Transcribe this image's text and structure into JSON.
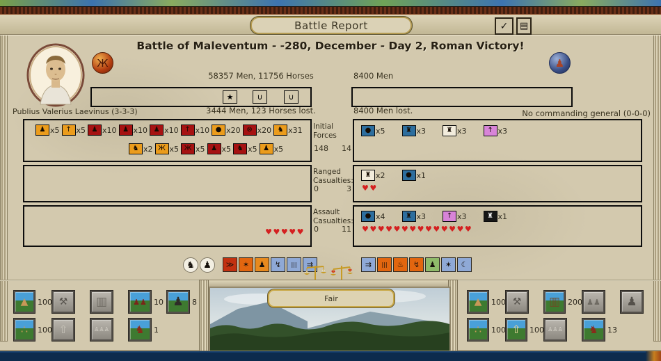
{
  "window": {
    "title": "Battle Report",
    "confirm_icon": "✓",
    "log_icon": "▤"
  },
  "header": {
    "title": "Battle of Maleventum - -280, December - Day 2, Roman Victory!"
  },
  "attacker": {
    "general": "Publius Valerius Laevinus (3-3-3)",
    "strength": "58357 Men, 11756 Horses",
    "losses": "3444 Men, 123 Horses lost.",
    "badges": [
      {
        "name": "star-badge-icon",
        "g": "★",
        "bg": "#f2a71f",
        "fg": "#3a2000"
      },
      {
        "name": "laurel-badge-icon",
        "g": "∪",
        "bg": "#b51616",
        "fg": "#230202"
      },
      {
        "name": "laurel-badge-icon",
        "g": "∪",
        "bg": "#b51616",
        "fg": "#230202"
      }
    ]
  },
  "defender": {
    "strength": "8400 Men",
    "losses": "8400 Men lost.",
    "general": "No commanding general (0-0-0)"
  },
  "sections": {
    "initial": {
      "label": [
        "Initial",
        "Forces"
      ],
      "val_left": "148",
      "val_right": "14",
      "left_row1": [
        {
          "g": "♟",
          "bg": "#eb9c1c",
          "n": "x5"
        },
        {
          "g": "↑",
          "bg": "#eb9c1c",
          "n": "x5"
        },
        {
          "g": "♟",
          "bg": "#a61212",
          "n": "x10"
        },
        {
          "g": "♟",
          "bg": "#a61212",
          "n": "x10"
        },
        {
          "g": "♟",
          "bg": "#a61212",
          "n": "x10"
        },
        {
          "g": "↑",
          "bg": "#a61212",
          "n": "x10"
        },
        {
          "g": "●",
          "bg": "#eb9c1c",
          "n": "x20"
        },
        {
          "g": "⊗",
          "bg": "#a61212",
          "n": "x20"
        },
        {
          "g": "♞",
          "bg": "#eb9c1c",
          "n": "x31"
        }
      ],
      "left_row2": [
        {
          "g": "♞",
          "bg": "#eb9c1c",
          "n": "x2"
        },
        {
          "g": "Ж",
          "bg": "#eb9c1c",
          "n": "x5"
        },
        {
          "g": "Ж",
          "bg": "#a61212",
          "n": "x5"
        },
        {
          "g": "♟",
          "bg": "#a61212",
          "n": "x5"
        },
        {
          "g": "♞",
          "bg": "#a61212",
          "n": "x5"
        },
        {
          "g": "♟",
          "bg": "#eb9c1c",
          "n": "x5"
        }
      ],
      "right_row": [
        {
          "g": "●",
          "bg": "#2d6e9e",
          "n": "x5"
        },
        {
          "g": "♜",
          "bg": "#2d6e9e",
          "n": "x3"
        },
        {
          "g": "♜",
          "bg": "#f2ecdc",
          "n": "x3"
        },
        {
          "g": "↑",
          "bg": "#d884d8",
          "n": "x3"
        }
      ]
    },
    "ranged": {
      "label": [
        "Ranged",
        "Casualties:"
      ],
      "val_left": "0",
      "val_right": "3",
      "right_row": [
        {
          "g": "♜",
          "bg": "#f2ecdc",
          "n": "x2"
        },
        {
          "g": "●",
          "bg": "#2d6e9e",
          "n": "x1"
        }
      ],
      "right_hearts": 2,
      "left_hearts": 0
    },
    "assault": {
      "label": [
        "Assault",
        "Casualties:"
      ],
      "val_left": "0",
      "val_right": "11",
      "right_row": [
        {
          "g": "●",
          "bg": "#2d6e9e",
          "n": "x4"
        },
        {
          "g": "♜",
          "bg": "#2d6e9e",
          "n": "x3"
        },
        {
          "g": "↑",
          "bg": "#d884d8",
          "n": "x3"
        },
        {
          "g": "♜",
          "bg": "#161616",
          "fg": "#f2f2f2",
          "n": "x1"
        }
      ],
      "right_hearts": 14,
      "left_hearts": 5
    }
  },
  "battle_icons": {
    "round": [
      {
        "name": "cavalry-marker-icon",
        "glyph": "♞"
      },
      {
        "name": "infantry-marker-icon",
        "glyph": "♟"
      }
    ],
    "left_squares": [
      {
        "name": "pursuit-stat-icon",
        "bg": "#c23110",
        "glyph": "≫"
      },
      {
        "name": "clash-stat-icon",
        "bg": "#e2660f",
        "glyph": "✶"
      },
      {
        "name": "attacker-posture-icon",
        "bg": "#e78a1e",
        "glyph": "♟"
      },
      {
        "name": "skirmish-stat-icon",
        "bg": "#8fa9d6",
        "glyph": "↯"
      },
      {
        "name": "frontage-stat-icon",
        "bg": "#8fa9d6",
        "glyph": "|||"
      },
      {
        "name": "advance-stat-icon",
        "bg": "#8fa9d6",
        "glyph": "⇉"
      }
    ],
    "right_squares": [
      {
        "name": "advance-stat-icon",
        "bg": "#8fa9d6",
        "glyph": "⇉"
      },
      {
        "name": "frontage-stat-icon",
        "bg": "#e2660f",
        "glyph": "|||"
      },
      {
        "name": "supply-stat-icon",
        "bg": "#e2660f",
        "glyph": "♨"
      },
      {
        "name": "skirmish-stat-icon",
        "bg": "#e2660f",
        "glyph": "↯"
      },
      {
        "name": "defender-posture-icon",
        "bg": "#8fbb6a",
        "glyph": "♟"
      },
      {
        "name": "cohesion-stat-icon",
        "bg": "#8fa9d6",
        "glyph": "✶"
      },
      {
        "name": "night-stat-icon",
        "bg": "#8fa9d6",
        "glyph": "☾"
      }
    ]
  },
  "weather": {
    "label": "Fair"
  },
  "bottom_left_panel": {
    "row1": [
      {
        "name": "supply-wagon-icon",
        "glyph": "▲",
        "gc": "#c89858",
        "fs": "14px",
        "bg": "field",
        "count": "100"
      },
      {
        "name": "siege-works-icon",
        "glyph": "⚒",
        "gc": "#55514b",
        "fs": "14px",
        "bg": "gray",
        "count": ""
      },
      {
        "name": "palisade-icon",
        "glyph": "▥",
        "gc": "#6e6a62",
        "fs": "17px",
        "bg": "gray",
        "count": ""
      },
      {
        "name": "soldiers-icon",
        "glyph": "♟♟",
        "gc": "#7a2418",
        "fs": "11px",
        "bg": "field",
        "count": "10"
      },
      {
        "name": "helmet-icon",
        "glyph": "♟",
        "gc": "#2e2c28",
        "fs": "17px",
        "bg": "field",
        "count": "8"
      }
    ],
    "row2": [
      {
        "name": "supply-ammo-icon",
        "glyph": "∴",
        "gc": "#c89858",
        "fs": "16px",
        "bg": "field",
        "count": "100"
      },
      {
        "name": "road-icon",
        "glyph": "⇧",
        "gc": "#c4c0b6",
        "fs": "16px",
        "bg": "gray",
        "count": ""
      },
      {
        "name": "statues-icon",
        "glyph": "♙♙♙",
        "gc": "#e2ded4",
        "fs": "8px",
        "bg": "gray",
        "count": ""
      },
      {
        "name": "runner-icon",
        "glyph": "♞",
        "gc": "#8a2a1a",
        "fs": "15px",
        "bg": "field",
        "count": "1"
      }
    ]
  },
  "bottom_right_panel": {
    "row1": [
      {
        "name": "supply-wagon-icon",
        "glyph": "▲",
        "gc": "#c89858",
        "fs": "14px",
        "bg": "field",
        "count": "100"
      },
      {
        "name": "siege-works-icon",
        "glyph": "⚒",
        "gc": "#55514b",
        "fs": "14px",
        "bg": "gray",
        "count": ""
      },
      {
        "name": "palisade-icon",
        "glyph": "▥",
        "gc": "#6e4a26",
        "fs": "17px",
        "bg": "field",
        "count": "200"
      },
      {
        "name": "soldiers-icon",
        "glyph": "♟♟",
        "gc": "#6e6a62",
        "fs": "11px",
        "bg": "gray",
        "count": ""
      },
      {
        "name": "helmet-icon",
        "glyph": "♟",
        "gc": "#55514b",
        "fs": "17px",
        "bg": "gray",
        "count": ""
      }
    ],
    "row2": [
      {
        "name": "supply-ammo-icon",
        "glyph": "∴",
        "gc": "#c89858",
        "fs": "16px",
        "bg": "field",
        "count": "100"
      },
      {
        "name": "road-icon",
        "glyph": "⇧",
        "gc": "#e8d49a",
        "fs": "16px",
        "bg": "field",
        "count": "100"
      },
      {
        "name": "statues-icon",
        "glyph": "♙♙♙",
        "gc": "#e2ded4",
        "fs": "8px",
        "bg": "gray",
        "count": ""
      },
      {
        "name": "runner-icon",
        "glyph": "♞",
        "gc": "#8a2a1a",
        "fs": "15px",
        "bg": "field",
        "count": "13"
      }
    ]
  }
}
